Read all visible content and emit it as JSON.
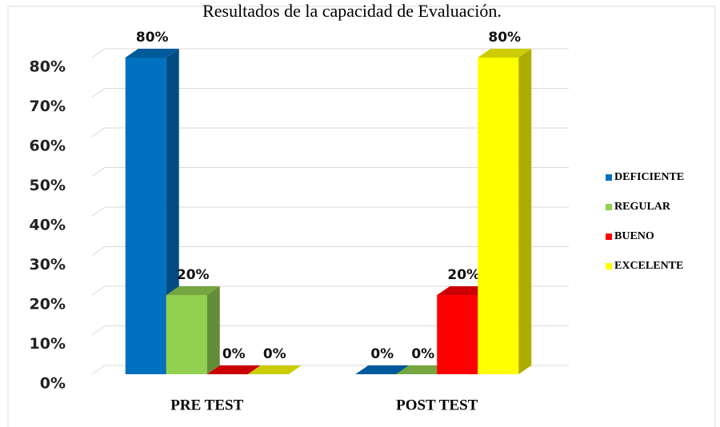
{
  "chart_data": {
    "type": "bar3d",
    "title": "Resultados de la capacidad de Evaluación.",
    "categories": [
      "PRE TEST",
      "POST TEST"
    ],
    "series": [
      {
        "name": "DEFICIENTE",
        "color": "#0070c0",
        "values": [
          80,
          0
        ],
        "value_labels": [
          "80%",
          "0%"
        ]
      },
      {
        "name": "REGULAR",
        "color": "#92d050",
        "values": [
          20,
          0
        ],
        "value_labels": [
          "20%",
          "0%"
        ]
      },
      {
        "name": "BUENO",
        "color": "#ff0000",
        "values": [
          0,
          20
        ],
        "value_labels": [
          "0%",
          "20%"
        ]
      },
      {
        "name": "EXCELENTE",
        "color": "#ffff00",
        "values": [
          0,
          80
        ],
        "value_labels": [
          "0%",
          "80%"
        ]
      }
    ],
    "ylim": [
      0,
      80
    ],
    "yticks": [
      {
        "value": 0,
        "label": "0%"
      },
      {
        "value": 10,
        "label": "10%"
      },
      {
        "value": 20,
        "label": "20%"
      },
      {
        "value": 30,
        "label": "30%"
      },
      {
        "value": 40,
        "label": "40%"
      },
      {
        "value": 50,
        "label": "50%"
      },
      {
        "value": 60,
        "label": "60%"
      },
      {
        "value": 70,
        "label": "70%"
      },
      {
        "value": 80,
        "label": "80%"
      }
    ],
    "grid": true,
    "legend": "right"
  }
}
